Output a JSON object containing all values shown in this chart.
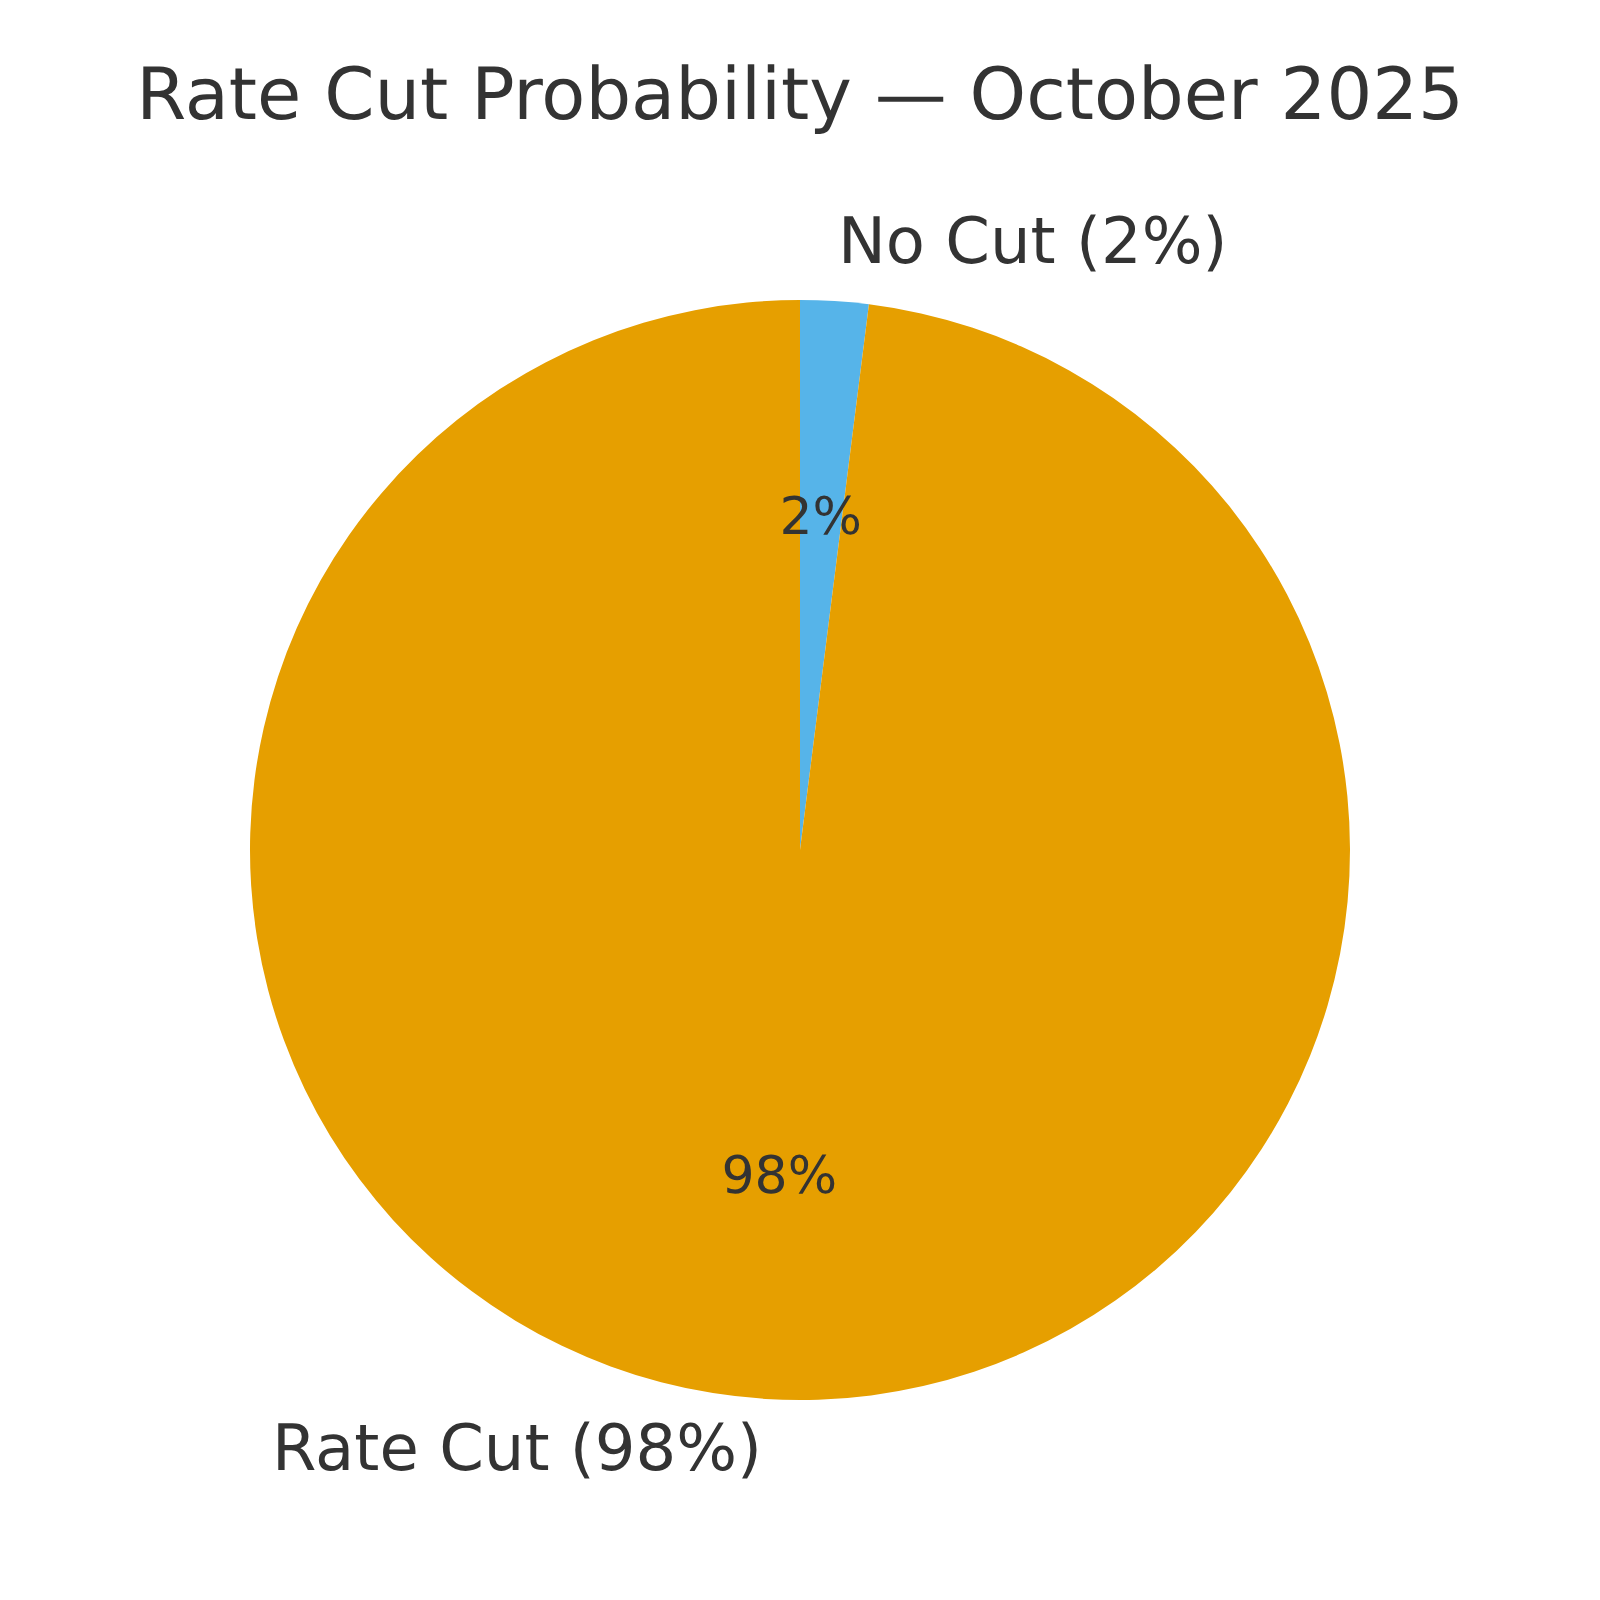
{
  "chart_data": {
    "type": "pie",
    "title": "Rate Cut Probability — October 2025",
    "categories": [
      "No Cut (2%)",
      "Rate Cut (98%)"
    ],
    "values": [
      2,
      98
    ],
    "colors": [
      "#56b4e9",
      "#e69f00"
    ],
    "value_labels": [
      "2%",
      "98%"
    ],
    "legend": false
  }
}
